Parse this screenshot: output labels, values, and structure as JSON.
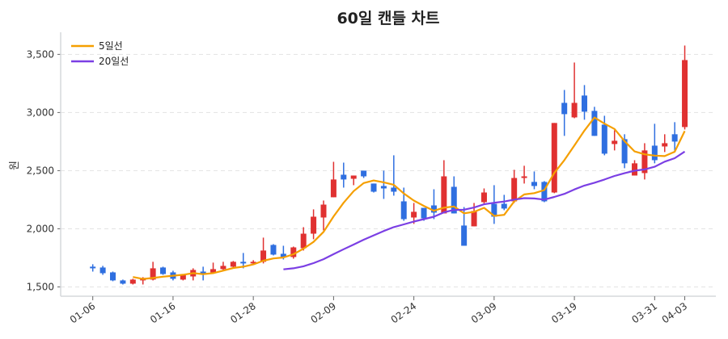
{
  "chart_data": {
    "type": "candlestick",
    "title": "60일 캔들 차트",
    "xlabel": "",
    "ylabel": "원",
    "ylim": [
      1420,
      3690
    ],
    "yticks": [
      1500,
      2000,
      2500,
      3000,
      3500
    ],
    "ytick_labels": [
      "1,500",
      "2,000",
      "2,500",
      "3,000",
      "3,500"
    ],
    "grid": true,
    "legend_position": "top-left",
    "colors": {
      "up": "#e03131",
      "down": "#2f6fe0",
      "ma5": "#f59f00",
      "ma20": "#7b3fe4"
    },
    "moving_averages": [
      {
        "name": "5일선",
        "window": 5,
        "color": "#f59f00"
      },
      {
        "name": "20일선",
        "window": 20,
        "color": "#7b3fe4"
      }
    ],
    "xticks": [
      {
        "index": 0,
        "label": "01-06"
      },
      {
        "index": 8,
        "label": "01-16"
      },
      {
        "index": 16,
        "label": "01-28"
      },
      {
        "index": 24,
        "label": "02-09"
      },
      {
        "index": 32,
        "label": "02-24"
      },
      {
        "index": 40,
        "label": "03-09"
      },
      {
        "index": 48,
        "label": "03-19"
      },
      {
        "index": 56,
        "label": "03-31"
      },
      {
        "index": 59,
        "label": "04-03"
      }
    ],
    "dates": [
      "01-06",
      "01-07",
      "01-08",
      "01-09",
      "01-12",
      "01-13",
      "01-14",
      "01-15",
      "01-16",
      "01-19",
      "01-20",
      "01-21",
      "01-22",
      "01-23",
      "01-26",
      "01-27",
      "01-28",
      "01-29",
      "01-30",
      "02-02",
      "02-03",
      "02-04",
      "02-05",
      "02-06",
      "02-09",
      "02-10",
      "02-11",
      "02-12",
      "02-13",
      "02-19",
      "02-20",
      "02-23",
      "02-24",
      "02-25",
      "02-26",
      "02-27",
      "03-03",
      "03-04",
      "03-05",
      "03-06",
      "03-09",
      "03-10",
      "03-11",
      "03-12",
      "03-13",
      "03-16",
      "03-17",
      "03-18",
      "03-19",
      "03-20",
      "03-23",
      "03-24",
      "03-25",
      "03-26",
      "03-27",
      "03-30",
      "03-31",
      "04-01",
      "04-02",
      "04-03"
    ],
    "ohlc": [
      [
        1674,
        1660,
        1695,
        1632
      ],
      [
        1667,
        1618,
        1681,
        1604
      ],
      [
        1625,
        1556,
        1632,
        1549
      ],
      [
        1556,
        1528,
        1563,
        1521
      ],
      [
        1528,
        1563,
        1570,
        1521
      ],
      [
        1556,
        1577,
        1584,
        1521
      ],
      [
        1563,
        1660,
        1716,
        1556
      ],
      [
        1667,
        1611,
        1674,
        1604
      ],
      [
        1625,
        1570,
        1639,
        1556
      ],
      [
        1563,
        1604,
        1611,
        1556
      ],
      [
        1590,
        1646,
        1660,
        1556
      ],
      [
        1632,
        1618,
        1674,
        1556
      ],
      [
        1625,
        1653,
        1709,
        1618
      ],
      [
        1653,
        1681,
        1716,
        1639
      ],
      [
        1674,
        1716,
        1723,
        1667
      ],
      [
        1716,
        1702,
        1792,
        1660
      ],
      [
        1702,
        1716,
        1730,
        1695
      ],
      [
        1716,
        1813,
        1924,
        1702
      ],
      [
        1861,
        1778,
        1868,
        1771
      ],
      [
        1785,
        1757,
        1854,
        1736
      ],
      [
        1757,
        1840,
        1847,
        1743
      ],
      [
        1833,
        1958,
        2014,
        1813
      ],
      [
        1958,
        2104,
        2167,
        1910
      ],
      [
        2097,
        2208,
        2243,
        1986
      ],
      [
        2271,
        2424,
        2576,
        2271
      ],
      [
        2465,
        2424,
        2569,
        2354
      ],
      [
        2430,
        2458,
        2458,
        2375
      ],
      [
        2500,
        2451,
        2500,
        2437
      ],
      [
        2389,
        2319,
        2389,
        2312
      ],
      [
        2368,
        2347,
        2500,
        2257
      ],
      [
        2354,
        2319,
        2632,
        2285
      ],
      [
        2236,
        2083,
        2354,
        2069
      ],
      [
        2097,
        2146,
        2222,
        2042
      ],
      [
        2180,
        2090,
        2180,
        2069
      ],
      [
        2201,
        2139,
        2340,
        2083
      ],
      [
        2132,
        2451,
        2590,
        2132
      ],
      [
        2361,
        2132,
        2451,
        2132
      ],
      [
        2028,
        1854,
        2187,
        1854
      ],
      [
        2021,
        2153,
        2222,
        2021
      ],
      [
        2229,
        2312,
        2347,
        2215
      ],
      [
        2215,
        2104,
        2375,
        2042
      ],
      [
        2215,
        2174,
        2292,
        2160
      ],
      [
        2236,
        2437,
        2507,
        2222
      ],
      [
        2437,
        2451,
        2542,
        2389
      ],
      [
        2403,
        2368,
        2493,
        2340
      ],
      [
        2403,
        2236,
        2410,
        2229
      ],
      [
        2312,
        2910,
        2910,
        2306
      ],
      [
        3083,
        2986,
        3194,
        2799
      ],
      [
        2958,
        3083,
        3430,
        2951
      ],
      [
        3146,
        3007,
        3236,
        2938
      ],
      [
        3014,
        2799,
        3049,
        2799
      ],
      [
        2896,
        2646,
        2972,
        2632
      ],
      [
        2729,
        2757,
        2847,
        2674
      ],
      [
        2771,
        2563,
        2813,
        2521
      ],
      [
        2458,
        2563,
        2590,
        2458
      ],
      [
        2479,
        2674,
        2736,
        2424
      ],
      [
        2715,
        2590,
        2903,
        2563
      ],
      [
        2708,
        2736,
        2813,
        2660
      ],
      [
        2813,
        2750,
        2917,
        2660
      ],
      [
        2875,
        3451,
        3576,
        2854
      ]
    ]
  }
}
